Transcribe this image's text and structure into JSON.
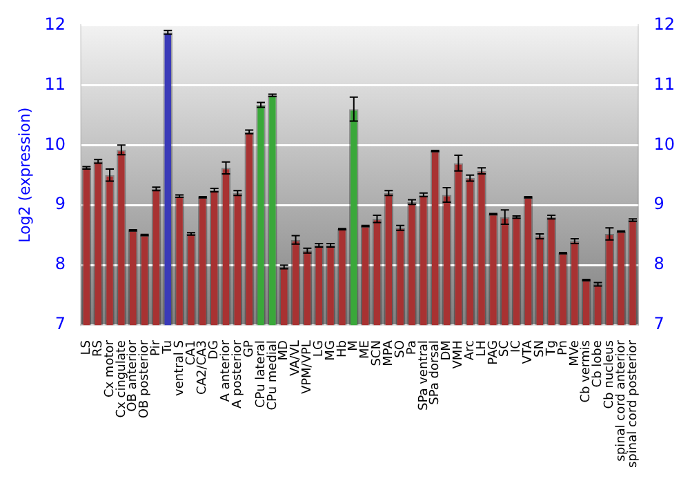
{
  "chart_data": {
    "type": "bar",
    "ylabel": "Log2 (expression)",
    "categories": [
      "LS",
      "RS",
      "Cx motor",
      "Cx cingulate",
      "OB anterior",
      "OB posterior",
      "Pir",
      "Tu",
      "ventral S",
      "CA1",
      "CA2/CA3",
      "DG",
      "A anterior",
      "A posterior",
      "GP",
      "CPu lateral",
      "CPu medial",
      "MD",
      "VA/VL",
      "VPM/VPL",
      "LG",
      "MG",
      "Hb",
      "M",
      "ME",
      "SCN",
      "MPA",
      "SO",
      "Pa",
      "SPa ventral",
      "SPa dorsal",
      "DM",
      "VMH",
      "Arc",
      "LH",
      "PAG",
      "SC",
      "IC",
      "VTA",
      "SN",
      "Tg",
      "Pn",
      "MVe",
      "Cb vermis",
      "Cb lobe",
      "Cb nucleus",
      "spinal cord anterior",
      "spinal cord posterior"
    ],
    "values": [
      9.62,
      9.73,
      9.5,
      9.92,
      8.58,
      8.5,
      9.27,
      11.88,
      9.15,
      8.52,
      9.13,
      9.25,
      9.62,
      9.2,
      10.22,
      10.67,
      10.83,
      7.97,
      8.42,
      8.24,
      8.33,
      8.33,
      8.6,
      10.6,
      8.65,
      8.77,
      9.2,
      8.62,
      9.05,
      9.17,
      9.9,
      9.17,
      9.7,
      9.45,
      9.57,
      8.85,
      8.8,
      8.8,
      9.13,
      8.48,
      8.8,
      8.2,
      8.4,
      7.75,
      7.68,
      8.52,
      8.56,
      8.75
    ],
    "errors": [
      0.02,
      0.03,
      0.1,
      0.08,
      0.01,
      0.01,
      0.03,
      0.03,
      0.02,
      0.02,
      0.01,
      0.03,
      0.1,
      0.04,
      0.03,
      0.04,
      0.02,
      0.03,
      0.07,
      0.04,
      0.03,
      0.03,
      0.01,
      0.2,
      0.01,
      0.06,
      0.04,
      0.04,
      0.04,
      0.03,
      0.01,
      0.12,
      0.13,
      0.05,
      0.05,
      0.01,
      0.12,
      0.02,
      0.01,
      0.04,
      0.03,
      0.01,
      0.04,
      0.01,
      0.03,
      0.1,
      0.01,
      0.02
    ],
    "colors": [
      "#a83232",
      "#a83232",
      "#a83232",
      "#a83232",
      "#a83232",
      "#a83232",
      "#a83232",
      "#3a3ab8",
      "#a83232",
      "#a83232",
      "#a83232",
      "#a83232",
      "#a83232",
      "#a83232",
      "#a83232",
      "#3aa83a",
      "#3aa83a",
      "#a83232",
      "#a83232",
      "#a83232",
      "#a83232",
      "#a83232",
      "#a83232",
      "#3aa83a",
      "#a83232",
      "#a83232",
      "#a83232",
      "#a83232",
      "#a83232",
      "#a83232",
      "#a83232",
      "#a83232",
      "#a83232",
      "#a83232",
      "#a83232",
      "#a83232",
      "#a83232",
      "#a83232",
      "#a83232",
      "#a83232",
      "#a83232",
      "#a83232",
      "#a83232",
      "#a83232",
      "#a83232",
      "#a83232",
      "#a83232",
      "#a83232"
    ],
    "ylim": [
      7,
      12
    ],
    "yticks": [
      7,
      8,
      9,
      10,
      11,
      12
    ],
    "y2lim": [
      7,
      12
    ],
    "y2ticks": [
      7,
      8,
      9,
      10,
      11,
      12
    ],
    "grid": "y",
    "legend": false
  }
}
